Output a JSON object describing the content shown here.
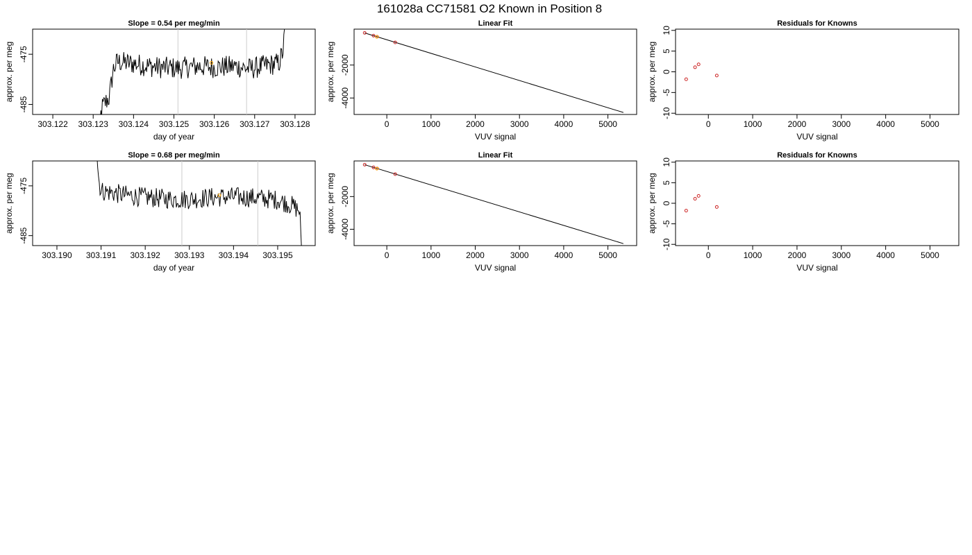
{
  "figure": {
    "title": "161028a     CC71581   O2 Known in Position  8"
  },
  "colors": {
    "trace": "#000000",
    "vline": "#cccccc",
    "known_point": "#cc2222",
    "sample_point": "#ffa500",
    "frame": "#000000"
  },
  "chart_data": [
    {
      "id": "time1",
      "type": "line",
      "title": "Slope =  0.54  per meg/min",
      "xlabel": "day of year",
      "ylabel": "approx. per meg",
      "xlim": [
        303.1215,
        303.1285
      ],
      "ylim": [
        -487,
        -470
      ],
      "xticks": [
        303.122,
        303.123,
        303.124,
        303.125,
        303.126,
        303.127,
        303.128
      ],
      "xtick_labels": [
        "303.122",
        "303.123",
        "303.124",
        "303.125",
        "303.126",
        "303.127",
        "303.128"
      ],
      "yticks": [
        -475,
        -485
      ],
      "ytick_labels": [
        "-475",
        "-485"
      ],
      "vlines": [
        303.1251,
        303.1268
      ],
      "trace_span": [
        303.1231,
        303.1278
      ],
      "rise_x": 303.1234,
      "series_points": [
        {
          "x": 303.1231,
          "y": -497
        },
        {
          "x": 303.1232,
          "y": -486.0
        },
        {
          "x": 303.1233,
          "y": -484.6
        },
        {
          "x": 303.1234,
          "y": -483.6
        },
        {
          "x": 303.1235,
          "y": -478
        },
        {
          "x": 303.1236,
          "y": -476.5
        },
        {
          "x": 303.1241,
          "y": -477.0
        },
        {
          "x": 303.1246,
          "y": -477.6
        },
        {
          "x": 303.1251,
          "y": -477.8
        },
        {
          "x": 303.1256,
          "y": -477.4
        },
        {
          "x": 303.126,
          "y": -477.6
        },
        {
          "x": 303.1265,
          "y": -477.4
        },
        {
          "x": 303.1269,
          "y": -477.9
        },
        {
          "x": 303.1273,
          "y": -477.2
        },
        {
          "x": 303.1276,
          "y": -476.8
        },
        {
          "x": 303.1277,
          "y": -474.5
        },
        {
          "x": 303.12785,
          "y": -462
        }
      ],
      "noise_amplitude": 2.2,
      "highlight": [
        {
          "x": 303.12593,
          "y": -476.7
        }
      ]
    },
    {
      "id": "fit1",
      "type": "scatter",
      "title": "Linear Fit",
      "xlabel": "VUV signal",
      "ylabel": "approx. per meg",
      "xlim": [
        -740,
        5650
      ],
      "ylim": [
        -5000,
        180
      ],
      "xticks": [
        0,
        1000,
        2000,
        3000,
        4000,
        5000
      ],
      "xtick_labels": [
        "0",
        "1000",
        "2000",
        "3000",
        "4000",
        "5000"
      ],
      "yticks": [
        -2000,
        -4000
      ],
      "ytick_labels": [
        "-2000",
        "-4000"
      ],
      "fit_line": [
        [
          -500,
          -50
        ],
        [
          5350,
          -4880
        ]
      ],
      "points": [
        {
          "x": -500,
          "y": -48,
          "color": "red"
        },
        {
          "x": -300,
          "y": -215,
          "color": "red"
        },
        {
          "x": -220,
          "y": -283,
          "color": "red"
        },
        {
          "x": 190,
          "y": -626,
          "color": "red"
        },
        {
          "x": -225,
          "y": -290,
          "color": "orange"
        }
      ]
    },
    {
      "id": "resid1",
      "type": "scatter",
      "title": "Residuals for Knowns",
      "xlabel": "VUV signal",
      "ylabel": "approx. per meg",
      "xlim": [
        -740,
        5650
      ],
      "ylim": [
        -10.3,
        10.3
      ],
      "xticks": [
        0,
        1000,
        2000,
        3000,
        4000,
        5000
      ],
      "xtick_labels": [
        "0",
        "1000",
        "2000",
        "3000",
        "4000",
        "5000"
      ],
      "yticks": [
        10,
        5,
        0,
        -5,
        -10
      ],
      "ytick_labels": [
        "10",
        "5",
        "0",
        "-5",
        "-10"
      ],
      "points": [
        {
          "x": -500,
          "y": -1.8,
          "color": "red"
        },
        {
          "x": -300,
          "y": 1.1,
          "color": "red"
        },
        {
          "x": -220,
          "y": 1.8,
          "color": "red"
        },
        {
          "x": 190,
          "y": -0.9,
          "color": "red"
        }
      ]
    },
    {
      "id": "time2",
      "type": "line",
      "title": "Slope =  0.68  per meg/min",
      "xlabel": "day of year",
      "ylabel": "approx. per meg",
      "xlim": [
        303.18945,
        303.19585
      ],
      "ylim": [
        -487,
        -470
      ],
      "xticks": [
        303.19,
        303.191,
        303.192,
        303.193,
        303.194,
        303.195
      ],
      "xtick_labels": [
        "303.190",
        "303.191",
        "303.192",
        "303.193",
        "303.194",
        "303.195"
      ],
      "yticks": [
        -475,
        -485
      ],
      "ytick_labels": [
        "-475",
        "-485"
      ],
      "vlines": [
        303.19283,
        303.19455
      ],
      "trace_span": [
        303.19085,
        303.19558
      ],
      "rise_x": null,
      "series_points": [
        {
          "x": 303.19085,
          "y": -462
        },
        {
          "x": 303.19095,
          "y": -474
        },
        {
          "x": 303.191,
          "y": -476.0
        },
        {
          "x": 303.1915,
          "y": -476.8
        },
        {
          "x": 303.192,
          "y": -477.3
        },
        {
          "x": 303.1925,
          "y": -477.6
        },
        {
          "x": 303.193,
          "y": -477.7
        },
        {
          "x": 303.1935,
          "y": -477.3
        },
        {
          "x": 303.194,
          "y": -477.2
        },
        {
          "x": 303.1945,
          "y": -477.4
        },
        {
          "x": 303.195,
          "y": -477.8
        },
        {
          "x": 303.1953,
          "y": -478.8
        },
        {
          "x": 303.1955,
          "y": -480.0
        },
        {
          "x": 303.19558,
          "y": -495
        }
      ],
      "noise_amplitude": 2.0,
      "highlight": [
        {
          "x": 303.19368,
          "y": -476.9
        }
      ]
    },
    {
      "id": "fit2",
      "type": "scatter",
      "title": "Linear Fit",
      "xlabel": "VUV signal",
      "ylabel": "approx. per meg",
      "xlim": [
        -740,
        5650
      ],
      "ylim": [
        -5000,
        180
      ],
      "xticks": [
        0,
        1000,
        2000,
        3000,
        4000,
        5000
      ],
      "xtick_labels": [
        "0",
        "1000",
        "2000",
        "3000",
        "4000",
        "5000"
      ],
      "yticks": [
        -2000,
        -4000
      ],
      "ytick_labels": [
        "-2000",
        "-4000"
      ],
      "fit_line": [
        [
          -500,
          -50
        ],
        [
          5350,
          -4880
        ]
      ],
      "points": [
        {
          "x": -500,
          "y": -48,
          "color": "red"
        },
        {
          "x": -300,
          "y": -215,
          "color": "red"
        },
        {
          "x": -220,
          "y": -283,
          "color": "red"
        },
        {
          "x": 190,
          "y": -626,
          "color": "red"
        },
        {
          "x": -225,
          "y": -290,
          "color": "orange"
        }
      ]
    },
    {
      "id": "resid2",
      "type": "scatter",
      "title": "Residuals for Knowns",
      "xlabel": "VUV signal",
      "ylabel": "approx. per meg",
      "xlim": [
        -740,
        5650
      ],
      "ylim": [
        -10.3,
        10.3
      ],
      "xticks": [
        0,
        1000,
        2000,
        3000,
        4000,
        5000
      ],
      "xtick_labels": [
        "0",
        "1000",
        "2000",
        "3000",
        "4000",
        "5000"
      ],
      "yticks": [
        10,
        5,
        0,
        -5,
        -10
      ],
      "ytick_labels": [
        "10",
        "5",
        "0",
        "-5",
        "-10"
      ],
      "points": [
        {
          "x": -500,
          "y": -1.8,
          "color": "red"
        },
        {
          "x": -300,
          "y": 1.1,
          "color": "red"
        },
        {
          "x": -220,
          "y": 1.8,
          "color": "red"
        },
        {
          "x": 190,
          "y": -0.9,
          "color": "red"
        }
      ]
    }
  ]
}
